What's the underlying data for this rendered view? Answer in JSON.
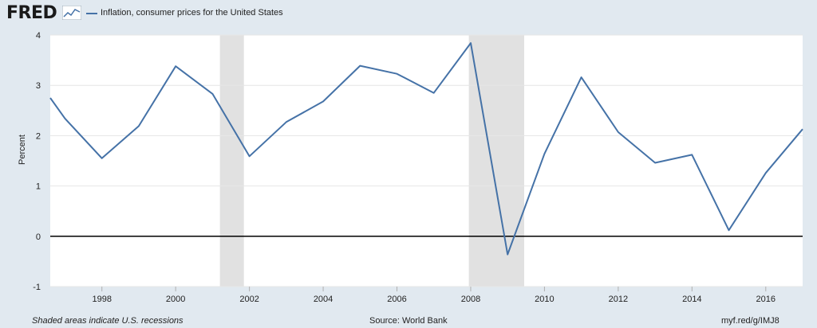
{
  "header": {
    "logo_text": "FRED",
    "logo_icon": "line-graph-icon",
    "legend_label": "Inflation, consumer prices for the United States",
    "series_color": "#4572a7"
  },
  "footer": {
    "recession_note": "Shaded areas indicate U.S. recessions",
    "source": "Source: World Bank",
    "short_url": "myf.red/g/IMJ8"
  },
  "chart_data": {
    "type": "line",
    "title": "",
    "xlabel": "",
    "ylabel": "Percent",
    "ylim": [
      -1,
      4
    ],
    "xlim": [
      1996.6,
      2017.0
    ],
    "y_ticks": [
      -1,
      0,
      1,
      2,
      3,
      4
    ],
    "x_ticks": [
      "1998",
      "2000",
      "2002",
      "2004",
      "2006",
      "2008",
      "2010",
      "2012",
      "2014",
      "2016"
    ],
    "grid": "horizontal",
    "zero_line": true,
    "recessions": [
      {
        "start": 2001.2,
        "end": 2001.85
      },
      {
        "start": 2007.95,
        "end": 2009.45
      }
    ],
    "series": [
      {
        "name": "Inflation, consumer prices for the United States",
        "color": "#4572a7",
        "x": [
          1996.6,
          1997,
          1998,
          1999,
          2000,
          2001,
          2002,
          2003,
          2004,
          2005,
          2006,
          2007,
          2008,
          2009,
          2010,
          2011,
          2012,
          2013,
          2014,
          2015,
          2016,
          2017
        ],
        "values": [
          2.75,
          2.34,
          1.55,
          2.19,
          3.38,
          2.83,
          1.59,
          2.27,
          2.68,
          3.39,
          3.23,
          2.85,
          3.84,
          -0.36,
          1.64,
          3.16,
          2.07,
          1.46,
          1.62,
          0.12,
          1.26,
          2.13
        ]
      }
    ]
  }
}
